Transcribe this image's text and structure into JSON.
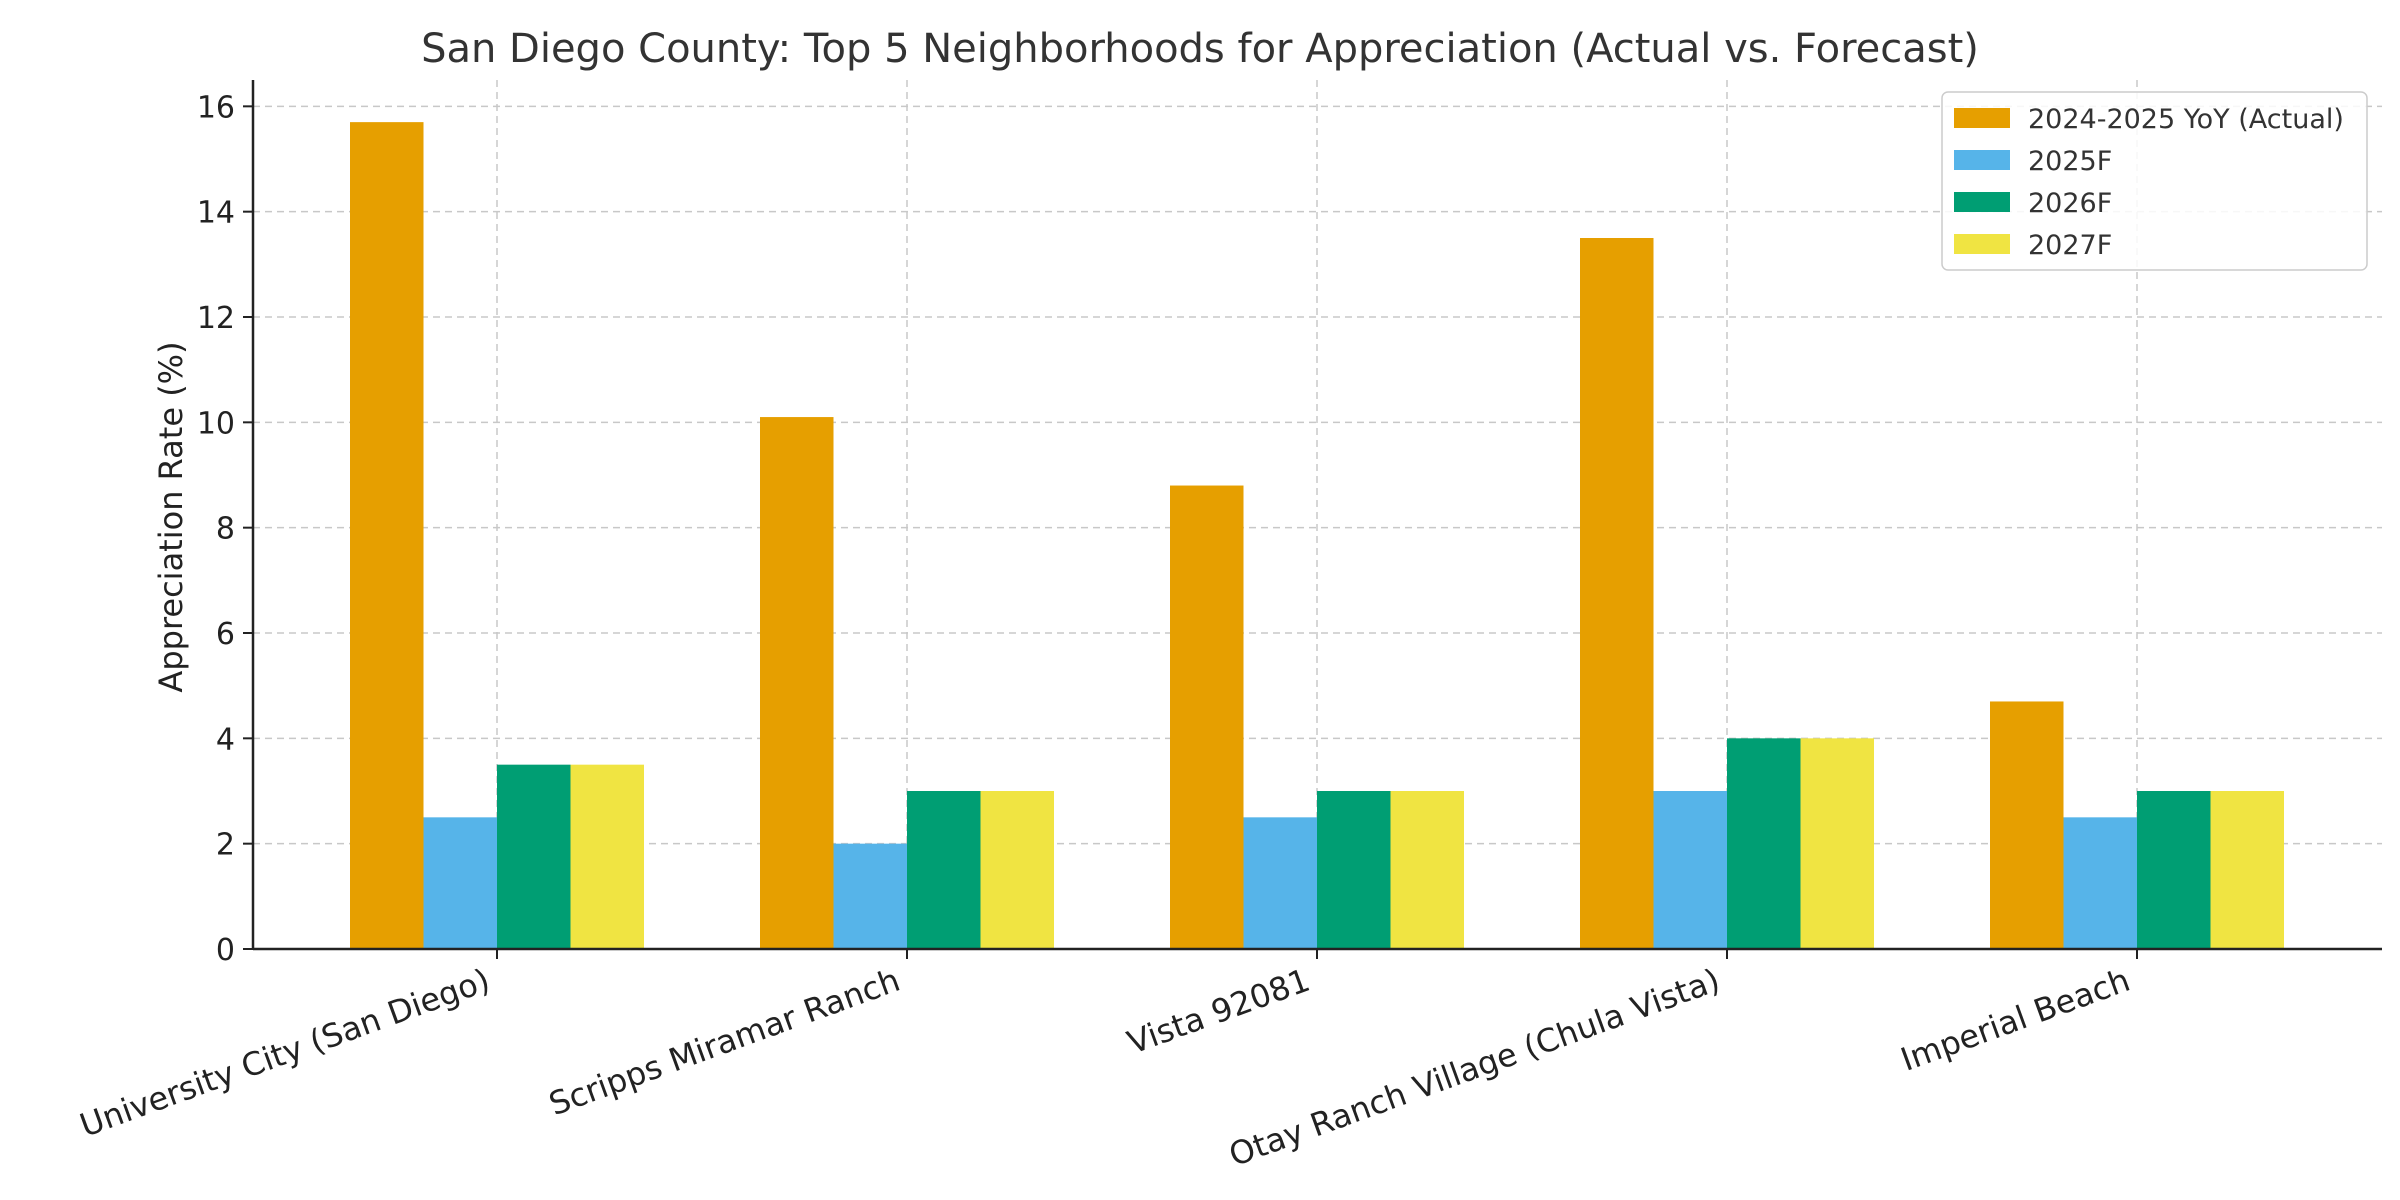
{
  "chart_data": {
    "type": "bar",
    "title": "San Diego County: Top 5 Neighborhoods for Appreciation (Actual vs. Forecast)",
    "xlabel": "",
    "ylabel": "Appreciation Rate (%)",
    "ylim": [
      0,
      16.5
    ],
    "yticks": [
      0,
      2,
      4,
      6,
      8,
      10,
      12,
      14,
      16
    ],
    "grid": true,
    "legend_position": "top-right",
    "categories": [
      "University City (San Diego)",
      "Scripps Miramar Ranch",
      "Vista 92081",
      "Otay Ranch Village (Chula Vista)",
      "Imperial Beach"
    ],
    "series": [
      {
        "name": "2024-2025 YoY (Actual)",
        "color": "#E69F00",
        "values": [
          15.7,
          10.1,
          8.8,
          13.5,
          4.7
        ]
      },
      {
        "name": "2025F",
        "color": "#56B4E9",
        "values": [
          2.5,
          2.0,
          2.5,
          3.0,
          2.5
        ]
      },
      {
        "name": "2026F",
        "color": "#009E73",
        "values": [
          3.5,
          3.0,
          3.0,
          4.0,
          3.0
        ]
      },
      {
        "name": "2027F",
        "color": "#F0E442",
        "values": [
          3.5,
          3.0,
          3.0,
          4.0,
          3.0
        ]
      }
    ]
  }
}
